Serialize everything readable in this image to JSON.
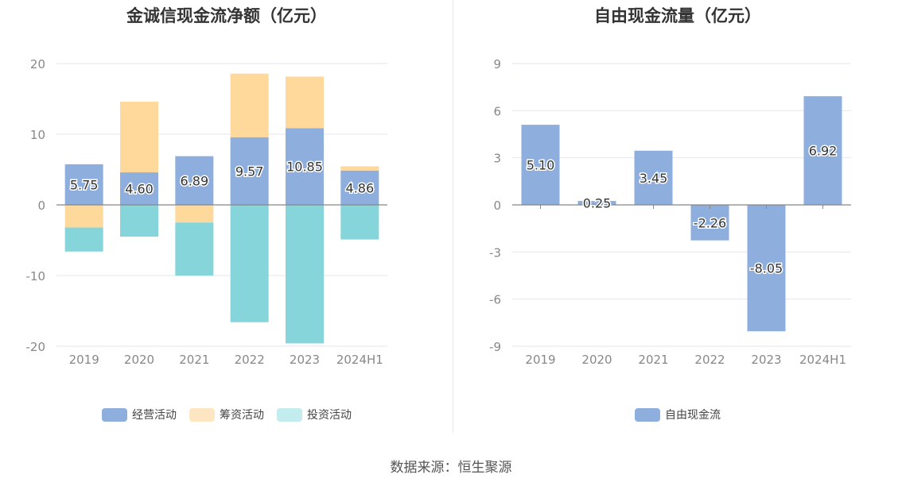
{
  "source_text": "数据来源：恒生聚源",
  "colors": {
    "operating": "#8eaedd",
    "financing": "#ffd99b",
    "investing": "#86d5da",
    "fcf": "#8eaedd",
    "grid": "#e6e6ee",
    "axis": "#888888",
    "tick": "#888888",
    "label": "#333333"
  },
  "chart_data": [
    {
      "type": "bar",
      "stacked": true,
      "title": "金诚信现金流净额（亿元）",
      "categories": [
        "2019",
        "2020",
        "2021",
        "2022",
        "2023",
        "2024H1"
      ],
      "ylim": [
        -20,
        20
      ],
      "yticks": [
        -20,
        -10,
        0,
        10,
        20
      ],
      "grid": true,
      "legend_position": "bottom",
      "series": [
        {
          "name": "经营活动",
          "key": "operating",
          "values": [
            5.75,
            4.6,
            6.89,
            9.57,
            10.85,
            4.86
          ],
          "labels": [
            "5.75",
            "4.60",
            "6.89",
            "9.57",
            "10.85",
            "4.86"
          ]
        },
        {
          "name": "筹资活动",
          "key": "financing",
          "values": [
            -3.2,
            10.0,
            -2.5,
            9.0,
            7.3,
            0.6
          ],
          "legend_swatch": "#ffe6c2"
        },
        {
          "name": "投资活动",
          "key": "investing",
          "values": [
            -3.4,
            -4.5,
            -7.5,
            -16.6,
            -19.6,
            -4.9
          ],
          "legend_swatch": "#c2ecee"
        }
      ]
    },
    {
      "type": "bar",
      "title": "自由现金流量（亿元）",
      "categories": [
        "2019",
        "2020",
        "2021",
        "2022",
        "2023",
        "2024H1"
      ],
      "ylim": [
        -9,
        9
      ],
      "yticks": [
        -9,
        -6,
        -3,
        0,
        3,
        6,
        9
      ],
      "grid": true,
      "legend_position": "bottom",
      "series": [
        {
          "name": "自由现金流",
          "key": "fcf",
          "values": [
            5.1,
            0.25,
            3.45,
            -2.26,
            -8.05,
            6.92
          ],
          "labels": [
            "5.10",
            "0.25",
            "3.45",
            "-2.26",
            "-8.05",
            "6.92"
          ]
        }
      ]
    }
  ]
}
